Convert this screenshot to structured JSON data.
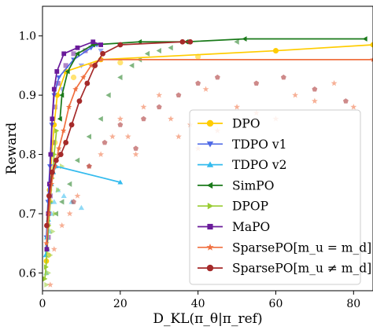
{
  "chart_data": {
    "type": "scatter",
    "xlabel": "D_KL(π_θ|π_ref)",
    "ylabel": "Reward",
    "xlim": [
      0,
      85
    ],
    "ylim": [
      0.57,
      1.05
    ],
    "xticks": [
      "0",
      "20",
      "40",
      "60",
      "80"
    ],
    "yticks": [
      "0.6",
      "0.7",
      "0.8",
      "0.9",
      "1.0"
    ],
    "xtick_values": [
      0,
      20,
      40,
      60,
      80
    ],
    "ytick_values": [
      0.6,
      0.7,
      0.8,
      0.9,
      1.0
    ],
    "grid": false,
    "legend_position": "lower-right",
    "series": [
      {
        "name": "DPO",
        "color": "#ffcc00",
        "marker": "circle",
        "scatter_marker": "circle",
        "frontier": [
          [
            1.0,
            0.62
          ],
          [
            1.3,
            0.68
          ],
          [
            1.8,
            0.74
          ],
          [
            2.4,
            0.8
          ],
          [
            3.0,
            0.85
          ],
          [
            3.8,
            0.9
          ],
          [
            6.0,
            0.94
          ],
          [
            15.0,
            0.96
          ],
          [
            60.0,
            0.975
          ],
          [
            85.0,
            0.985
          ]
        ],
        "scatter": [
          [
            1.5,
            0.63
          ],
          [
            2.0,
            0.72
          ],
          [
            3.2,
            0.82
          ],
          [
            8.0,
            0.93
          ],
          [
            20.0,
            0.955
          ],
          [
            40.0,
            0.965
          ],
          [
            60.0,
            0.975
          ]
        ]
      },
      {
        "name": "TDPO v1",
        "color": "#4e69e6",
        "marker": "triangle-down",
        "scatter_marker": "triangle-down",
        "frontier": [
          [
            1.0,
            0.66
          ],
          [
            1.4,
            0.72
          ],
          [
            1.9,
            0.78
          ],
          [
            2.4,
            0.85
          ],
          [
            3.0,
            0.9
          ],
          [
            4.2,
            0.93
          ],
          [
            8.0,
            0.96
          ],
          [
            12.5,
            0.98
          ],
          [
            14.0,
            0.985
          ]
        ],
        "scatter": [
          [
            1.5,
            0.68
          ],
          [
            2.5,
            0.8
          ],
          [
            5.0,
            0.91
          ],
          [
            10.0,
            0.95
          ],
          [
            15.0,
            0.975
          ]
        ]
      },
      {
        "name": "TDPO v2",
        "color": "#33bbee",
        "marker": "triangle-up",
        "scatter_marker": "triangle-up",
        "frontier": [
          [
            0.8,
            0.63
          ],
          [
            1.1,
            0.66
          ],
          [
            1.5,
            0.69
          ],
          [
            1.9,
            0.72
          ],
          [
            2.3,
            0.75
          ],
          [
            2.8,
            0.77
          ],
          [
            3.5,
            0.78
          ],
          [
            20.0,
            0.753
          ]
        ],
        "scatter": [
          [
            1.0,
            0.6
          ],
          [
            1.3,
            0.64
          ],
          [
            1.8,
            0.67
          ],
          [
            2.3,
            0.7
          ],
          [
            3.0,
            0.72
          ],
          [
            4.0,
            0.74
          ],
          [
            5.5,
            0.73
          ],
          [
            7.5,
            0.72
          ],
          [
            10.0,
            0.71
          ]
        ]
      },
      {
        "name": "SimPO",
        "color": "#1a7a1a",
        "marker": "triangle-left",
        "scatter_marker": "triangle-left",
        "frontier": [
          [
            4.5,
            0.86
          ],
          [
            5.0,
            0.9
          ],
          [
            6.5,
            0.94
          ],
          [
            9.0,
            0.97
          ],
          [
            13.0,
            0.985
          ],
          [
            25.0,
            0.99
          ],
          [
            37.0,
            0.99
          ],
          [
            52.0,
            0.995
          ],
          [
            83.0,
            0.995
          ]
        ],
        "scatter": [
          [
            3.5,
            0.7
          ],
          [
            5.0,
            0.72
          ],
          [
            7.0,
            0.75
          ],
          [
            9.0,
            0.79
          ],
          [
            12.0,
            0.83
          ],
          [
            15.0,
            0.86
          ],
          [
            17.0,
            0.9
          ],
          [
            20.0,
            0.93
          ],
          [
            23.0,
            0.95
          ],
          [
            25.0,
            0.96
          ],
          [
            27.0,
            0.97
          ],
          [
            30.0,
            0.975
          ],
          [
            33.0,
            0.98
          ],
          [
            50.0,
            0.99
          ]
        ]
      },
      {
        "name": "DPOP",
        "color": "#99cc33",
        "marker": "triangle-right",
        "scatter_marker": "triangle-right",
        "frontier": [
          [
            0.6,
            0.59
          ],
          [
            0.9,
            0.61
          ],
          [
            1.2,
            0.64
          ],
          [
            1.6,
            0.68
          ],
          [
            2.0,
            0.72
          ],
          [
            2.5,
            0.76
          ],
          [
            3.0,
            0.8
          ],
          [
            3.6,
            0.84
          ]
        ],
        "scatter": [
          [
            1.0,
            0.58
          ],
          [
            1.5,
            0.6
          ],
          [
            2.0,
            0.63
          ],
          [
            2.6,
            0.67
          ],
          [
            3.2,
            0.7
          ],
          [
            4.0,
            0.74
          ],
          [
            5.0,
            0.78
          ],
          [
            6.0,
            0.82
          ]
        ]
      },
      {
        "name": "MaPO",
        "color": "#6a1b9a",
        "marker": "square",
        "scatter_marker": "square",
        "frontier": [
          [
            1.1,
            0.64
          ],
          [
            1.5,
            0.7
          ],
          [
            1.8,
            0.75
          ],
          [
            2.1,
            0.8
          ],
          [
            2.5,
            0.86
          ],
          [
            3.0,
            0.91
          ],
          [
            3.7,
            0.94
          ],
          [
            5.5,
            0.97
          ],
          [
            9.0,
            0.98
          ],
          [
            13.0,
            0.99
          ],
          [
            15.0,
            0.985
          ]
        ],
        "scatter": [
          [
            1.5,
            0.66
          ],
          [
            2.0,
            0.73
          ],
          [
            2.6,
            0.82
          ],
          [
            3.2,
            0.88
          ],
          [
            4.0,
            0.92
          ],
          [
            6.0,
            0.95
          ],
          [
            8.0,
            0.97
          ],
          [
            11.0,
            0.975
          ]
        ]
      },
      {
        "name": "SparsePO[m_u = m_d]",
        "color": "#f07040",
        "marker": "star",
        "scatter_marker": "star",
        "frontier": [
          [
            1.0,
            0.65
          ],
          [
            1.6,
            0.7
          ],
          [
            2.3,
            0.75
          ],
          [
            3.2,
            0.78
          ],
          [
            4.2,
            0.81
          ],
          [
            5.4,
            0.84
          ],
          [
            6.8,
            0.88
          ],
          [
            8.5,
            0.91
          ],
          [
            10.5,
            0.93
          ],
          [
            12.5,
            0.95
          ],
          [
            15.0,
            0.96
          ],
          [
            85.0,
            0.96
          ]
        ],
        "scatter": [
          [
            2.0,
            0.58
          ],
          [
            3.0,
            0.64
          ],
          [
            5.0,
            0.68
          ],
          [
            7.0,
            0.7
          ],
          [
            9.0,
            0.73
          ],
          [
            12.0,
            0.78
          ],
          [
            15.0,
            0.8
          ],
          [
            18.0,
            0.83
          ],
          [
            20.0,
            0.86
          ],
          [
            22.0,
            0.83
          ],
          [
            24.0,
            0.8
          ],
          [
            26.0,
            0.88
          ],
          [
            30.0,
            0.9
          ],
          [
            33.0,
            0.86
          ],
          [
            35.0,
            0.83
          ],
          [
            38.0,
            0.85
          ],
          [
            40.0,
            0.81
          ],
          [
            42.0,
            0.91
          ],
          [
            45.0,
            0.84
          ],
          [
            50.0,
            0.88
          ],
          [
            55.0,
            0.87
          ],
          [
            60.0,
            0.86
          ],
          [
            65.0,
            0.9
          ],
          [
            70.0,
            0.89
          ],
          [
            75.0,
            0.92
          ],
          [
            80.0,
            0.88
          ]
        ]
      },
      {
        "name": "SparsePO[m_u ≠ m_d]",
        "color": "#a52a2a",
        "marker": "circle",
        "scatter_marker": "pentagon",
        "frontier": [
          [
            1.1,
            0.68
          ],
          [
            1.7,
            0.73
          ],
          [
            2.5,
            0.77
          ],
          [
            3.5,
            0.79
          ],
          [
            4.7,
            0.8
          ],
          [
            6.0,
            0.82
          ],
          [
            7.5,
            0.85
          ],
          [
            9.5,
            0.89
          ],
          [
            11.5,
            0.92
          ],
          [
            13.5,
            0.95
          ],
          [
            15.5,
            0.97
          ],
          [
            20.0,
            0.985
          ],
          [
            36.0,
            0.99
          ],
          [
            38.0,
            0.99
          ]
        ],
        "scatter": [
          [
            8.0,
            0.72
          ],
          [
            12.0,
            0.78
          ],
          [
            16.0,
            0.82
          ],
          [
            20.0,
            0.85
          ],
          [
            24.0,
            0.81
          ],
          [
            26.0,
            0.86
          ],
          [
            30.0,
            0.88
          ],
          [
            35.0,
            0.9
          ],
          [
            40.0,
            0.92
          ],
          [
            45.0,
            0.93
          ],
          [
            55.0,
            0.92
          ],
          [
            62.0,
            0.93
          ],
          [
            70.0,
            0.91
          ],
          [
            78.0,
            0.89
          ]
        ]
      }
    ]
  }
}
